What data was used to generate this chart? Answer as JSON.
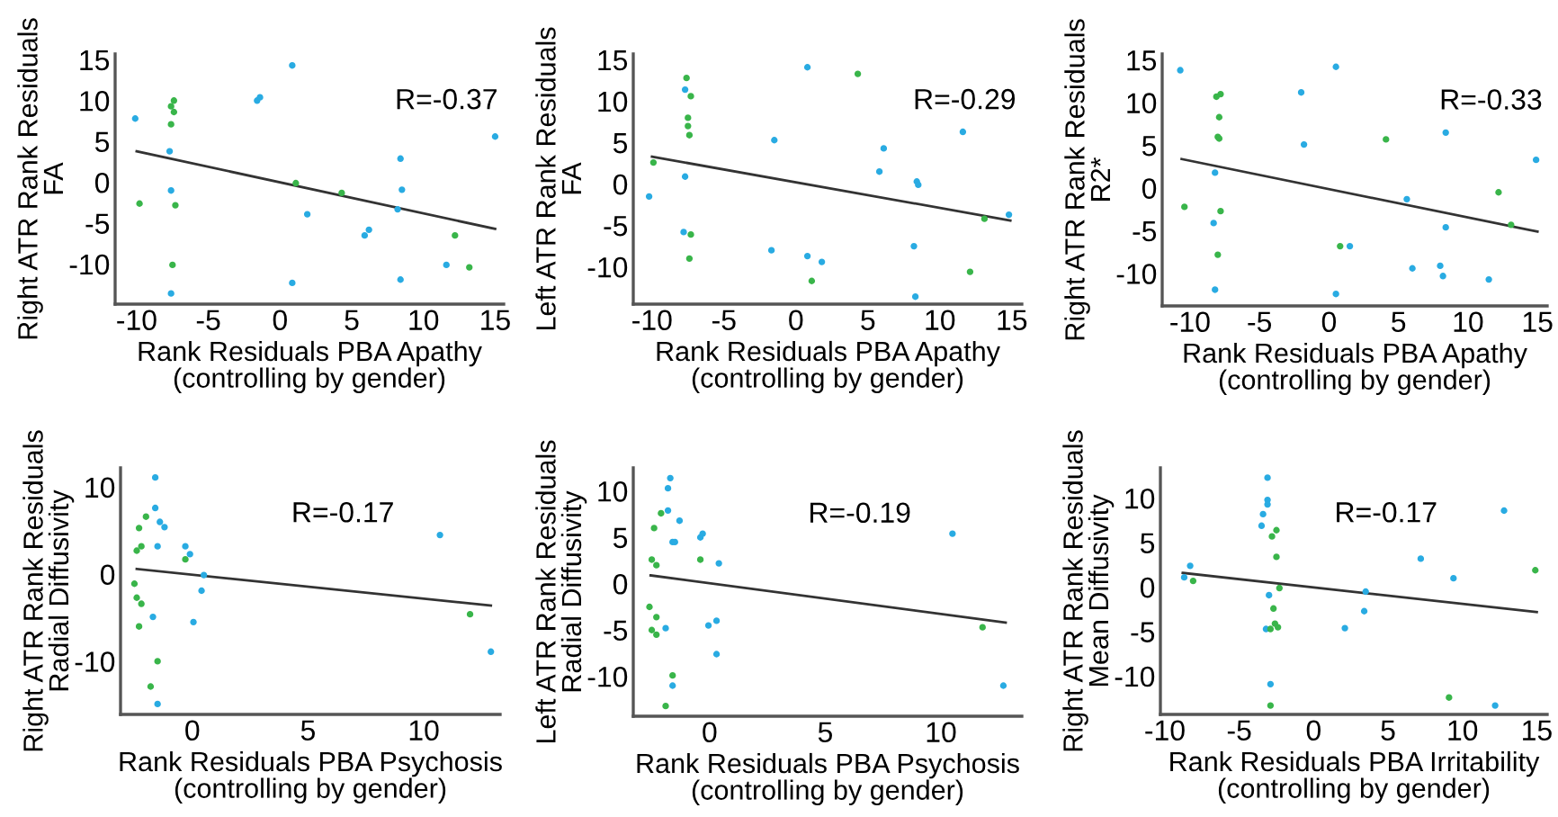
{
  "chart_data": [
    {
      "type": "scatter",
      "ylabel": "Right ATR Rank Residuals\nFA",
      "xlabel": "Rank Residuals PBA Apathy\n(controlling by gender)",
      "annotations": [
        "R=-0.37"
      ],
      "marker": "circle",
      "xlim": [
        -11.5,
        15.6
      ],
      "ylim": [
        -14.9,
        15.7
      ],
      "xticks": [
        -10,
        -5,
        0,
        5,
        10,
        15
      ],
      "yticks": [
        -10,
        -5,
        0,
        5,
        10,
        15
      ],
      "series": [
        {
          "color": "#29abe2",
          "x": [
            -10.1,
            -7.7,
            -7.6,
            -7.6,
            -1.6,
            -1.4,
            0.85,
            0.85,
            1.9,
            5.9,
            6.2,
            8.2,
            8.4,
            8.5,
            8.4,
            11.6,
            15
          ],
          "values": [
            7.8,
            3.8,
            -1.0,
            -13.6,
            10.0,
            10.4,
            14.3,
            -12.3,
            -3.9,
            -6.5,
            -5.8,
            -3.3,
            2.9,
            -0.9,
            -11.9,
            -10.1,
            5.6
          ]
        },
        {
          "color": "#39b54a",
          "x": [
            -7.4,
            -7.6,
            -7.4,
            -7.6,
            -9.8,
            -7.3,
            -7.5,
            1.1,
            4.3,
            12.2,
            13.2
          ],
          "values": [
            10.0,
            9.3,
            8.6,
            7.1,
            -2.6,
            -2.8,
            -10.1,
            -0.1,
            -1.3,
            -6.5,
            -10.4
          ]
        },
        {
          "type": "line",
          "color": "#333333",
          "marker": "none",
          "x": [
            -10,
            15
          ],
          "values": [
            3.8,
            -5.7
          ]
        }
      ]
    },
    {
      "type": "scatter",
      "ylabel": "Left ATR Rank Residuals\nFA",
      "xlabel": "Rank Residuals PBA Apathy\n(controlling by gender)",
      "annotations": [
        "R=-0.29"
      ],
      "marker": "circle",
      "xlim": [
        -11.3,
        15.7
      ],
      "ylim": [
        -14.5,
        15.7
      ],
      "xticks": [
        -10,
        -5,
        0,
        5,
        10,
        15
      ],
      "yticks": [
        -10,
        -5,
        0,
        5,
        10,
        15
      ],
      "series": [
        {
          "color": "#29abe2",
          "x": [
            -10.2,
            -7.7,
            -7.7,
            -7.8,
            -1.5,
            -1.7,
            0.8,
            0.8,
            1.8,
            5.8,
            6.1,
            8.4,
            8.5,
            8.2,
            8.3,
            11.6,
            14.8
          ],
          "values": [
            -1.5,
            11.4,
            0.9,
            -5.8,
            5.3,
            -8.0,
            14.1,
            -8.7,
            -9.4,
            1.5,
            4.3,
            0.3,
            -0.1,
            -7.5,
            -13.6,
            6.3,
            -3.7
          ]
        },
        {
          "color": "#39b54a",
          "x": [
            -7.6,
            -7.3,
            -7.5,
            -7.5,
            -7.4,
            -9.9,
            -7.3,
            -7.4,
            1.1,
            4.3,
            12.1,
            13.1
          ],
          "values": [
            12.8,
            10.6,
            8.0,
            7.0,
            5.9,
            2.6,
            -6.1,
            -9.0,
            -11.7,
            13.3,
            -10.6,
            -4.2
          ]
        },
        {
          "type": "line",
          "color": "#333333",
          "marker": "none",
          "x": [
            -10,
            14.9
          ],
          "values": [
            3.3,
            -4.4
          ]
        }
      ]
    },
    {
      "type": "scatter",
      "ylabel": "Right ATR Rank Residuals\nR2*",
      "xlabel": "Rank Residuals PBA Apathy\n(controlling by gender)",
      "annotations": [
        "R=-0.33"
      ],
      "marker": "circle",
      "xlim": [
        -12.0,
        15.7
      ],
      "ylim": [
        -13.8,
        15.7
      ],
      "xticks": [
        -10,
        -5,
        0,
        5,
        10,
        15
      ],
      "yticks": [
        -10,
        -5,
        0,
        5,
        10,
        15
      ],
      "series": [
        {
          "color": "#29abe2",
          "x": [
            -10.7,
            -8.2,
            -8.3,
            -8.2,
            -2.0,
            -1.8,
            0.5,
            0.5,
            1.5,
            5.6,
            6.0,
            8.4,
            8.4,
            8.0,
            8.2,
            11.5,
            14.9
          ],
          "values": [
            13.8,
            1.8,
            -4.1,
            -11.9,
            11.2,
            5.1,
            14.2,
            -12.4,
            -6.8,
            -1.3,
            -9.4,
            6.5,
            -4.6,
            -9.1,
            -10.3,
            -10.7,
            3.3
          ]
        },
        {
          "color": "#39b54a",
          "x": [
            -7.8,
            -8.1,
            -7.9,
            -8.0,
            -7.9,
            -10.4,
            -7.8,
            -8.0,
            0.8,
            4.1,
            12.2,
            13.1
          ],
          "values": [
            11.0,
            10.7,
            8.3,
            6.0,
            5.8,
            -2.2,
            -2.7,
            -7.8,
            -6.8,
            5.7,
            -0.5,
            -4.3
          ]
        },
        {
          "type": "line",
          "color": "#333333",
          "marker": "none",
          "x": [
            -10.6,
            15
          ],
          "values": [
            3.4,
            -5.1
          ]
        }
      ]
    },
    {
      "type": "scatter",
      "ylabel": "Right ATR Rank Residuals\nRadial Diffusivity",
      "xlabel": "Rank Residuals PBA Psychosis\n(controlling by gender)",
      "annotations": [
        "R=-0.17"
      ],
      "marker": "circle",
      "xlim": [
        -3.1,
        13.3
      ],
      "ylim": [
        -16.1,
        12.2
      ],
      "xticks": [
        0,
        5,
        10
      ],
      "yticks": [
        -10,
        0,
        10
      ],
      "series": [
        {
          "color": "#29abe2",
          "x": [
            -1.6,
            -1.6,
            -1.4,
            -1.2,
            -1.5,
            -0.3,
            -0.1,
            0.5,
            0.4,
            -1.7,
            0.05,
            -1.5,
            10.7,
            12.9
          ],
          "values": [
            11.1,
            7.6,
            6.0,
            5.4,
            3.2,
            3.2,
            2.3,
            -0.1,
            -1.9,
            -4.9,
            -5.5,
            -14.9,
            4.5,
            -8.9
          ]
        },
        {
          "color": "#39b54a",
          "x": [
            -2.0,
            -2.3,
            -2.2,
            -2.4,
            -0.3,
            -2.5,
            -2.4,
            -2.2,
            -2.3,
            -1.5,
            -1.8,
            12.0
          ],
          "values": [
            6.6,
            5.3,
            3.2,
            2.7,
            1.7,
            -1.1,
            -2.7,
            -3.4,
            -6.0,
            -10.0,
            -12.9,
            -4.6
          ]
        },
        {
          "type": "line",
          "color": "#333333",
          "marker": "none",
          "x": [
            -2.4,
            12.9
          ],
          "values": [
            0.6,
            -3.6
          ]
        }
      ]
    },
    {
      "type": "scatter",
      "ylabel": "Left ATR Rank Residuals\nRadial Diffusivity",
      "xlabel": "Rank Residuals PBA Psychosis\n(controlling by gender)",
      "annotations": [
        "R=-0.19"
      ],
      "marker": "circle",
      "xlim": [
        -3.3,
        13.5
      ],
      "ylim": [
        -14.3,
        12.5
      ],
      "xticks": [
        0,
        5,
        10
      ],
      "yticks": [
        -10,
        -5,
        0,
        5,
        10
      ],
      "series": [
        {
          "color": "#29abe2",
          "x": [
            -1.7,
            -1.8,
            -1.8,
            -1.3,
            -1.6,
            -1.5,
            -0.4,
            -0.3,
            0.4,
            -0.05,
            0.3,
            0.3,
            -1.9,
            -1.6,
            10.5,
            12.7
          ],
          "values": [
            11.4,
            10.3,
            7.9,
            6.8,
            4.5,
            4.5,
            5.0,
            5.4,
            2.2,
            -4.5,
            -4.0,
            -7.6,
            -4.8,
            -11.0,
            5.4,
            -11.0
          ]
        },
        {
          "color": "#39b54a",
          "x": [
            -2.1,
            -2.4,
            -2.5,
            -2.3,
            -0.4,
            -2.6,
            -2.3,
            -2.5,
            -2.3,
            -1.6,
            -1.9,
            11.8
          ],
          "values": [
            7.6,
            6.0,
            2.6,
            2.0,
            2.6,
            -2.5,
            -3.6,
            -5.0,
            -5.5,
            -9.9,
            -13.2,
            -4.7
          ]
        },
        {
          "type": "line",
          "color": "#333333",
          "marker": "none",
          "x": [
            -2.55,
            12.8
          ],
          "values": [
            0.9,
            -4.2
          ]
        }
      ]
    },
    {
      "type": "scatter",
      "ylabel": "Right ATR Rank Residuals\nMean Diffusivity",
      "xlabel": "Rank Residuals PBA Irritability\n(controlling by gender)",
      "annotations": [
        "R=-0.17"
      ],
      "marker": "circle",
      "xlim": [
        -10.3,
        15.7
      ],
      "ylim": [
        -14.3,
        13.4
      ],
      "xticks": [
        -10,
        -5,
        0,
        5,
        10,
        15
      ],
      "yticks": [
        -10,
        -5,
        0,
        5,
        10
      ],
      "series": [
        {
          "color": "#29abe2",
          "x": [
            -8.7,
            -8.3,
            -3.1,
            -3.1,
            -3.1,
            -3.4,
            -3.5,
            -3.0,
            -3.2,
            -2.9,
            2.1,
            3.4,
            3.5,
            7.2,
            9.4,
            12.8,
            12.2
          ],
          "values": [
            1.1,
            2.4,
            12.3,
            9.8,
            9.3,
            8.2,
            6.9,
            -0.9,
            -4.7,
            -10.9,
            -4.6,
            -2.7,
            -0.5,
            3.2,
            1.0,
            8.6,
            -13.3
          ]
        },
        {
          "color": "#39b54a",
          "x": [
            -8.1,
            -2.5,
            -2.8,
            -2.5,
            -2.3,
            -2.7,
            -2.6,
            -2.4,
            -2.9,
            -2.9,
            9.1,
            14.9
          ],
          "values": [
            0.7,
            6.4,
            5.7,
            3.4,
            -0.1,
            -2.4,
            -4.1,
            -4.5,
            -4.7,
            -13.3,
            -12.4,
            1.9
          ]
        },
        {
          "type": "line",
          "color": "#333333",
          "marker": "none",
          "x": [
            -8.8,
            15
          ],
          "values": [
            1.6,
            -2.8
          ]
        }
      ]
    }
  ]
}
